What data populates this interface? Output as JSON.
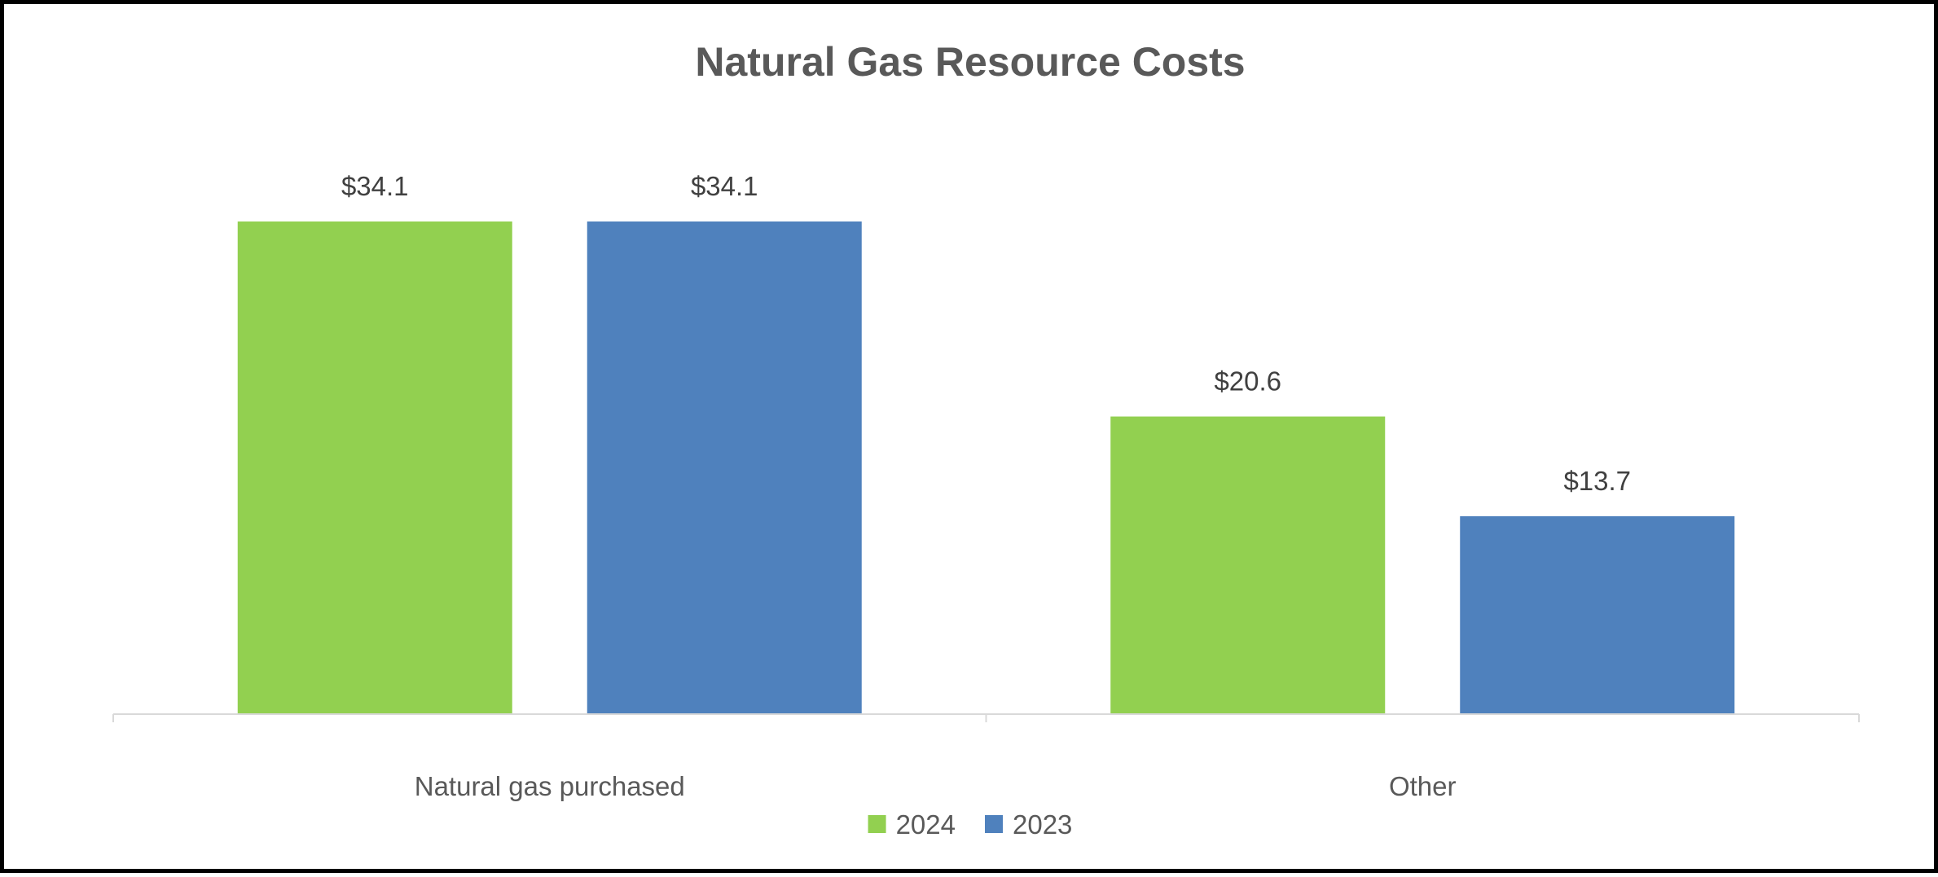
{
  "chart_data": {
    "type": "bar",
    "title": "Natural Gas Resource Costs",
    "categories": [
      "Natural gas purchased",
      "Other"
    ],
    "series": [
      {
        "name": "2024",
        "color": "#92d050",
        "values": [
          34.1,
          20.6
        ],
        "labels": [
          "$34.1",
          "$20.6"
        ]
      },
      {
        "name": "2023",
        "color": "#4f81bd",
        "values": [
          34.1,
          13.7
        ],
        "labels": [
          "$34.1",
          "$13.7"
        ]
      }
    ],
    "xlabel": "",
    "ylabel": "",
    "ylim": [
      0,
      34.1
    ],
    "grid": false,
    "legend": "bottom-center",
    "axis_color": "#d9d9d9"
  }
}
